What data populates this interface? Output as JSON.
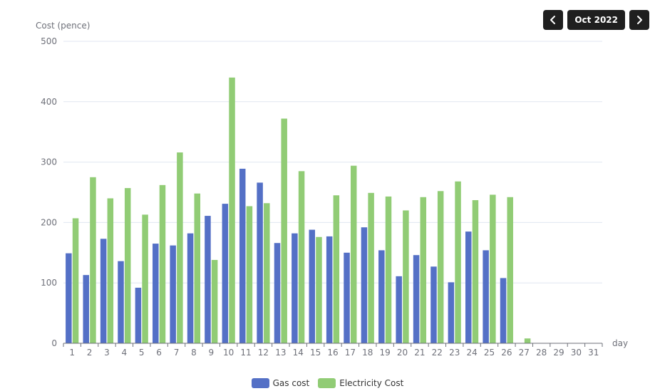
{
  "nav": {
    "month_label": "Oct 2022",
    "prev_icon": "chevron-left-icon",
    "next_icon": "chevron-right-icon"
  },
  "colors": {
    "gas": "#5470c6",
    "electricity": "#91cc75",
    "axis": "#6e7079",
    "grid": "#e0e6f1",
    "button": "#1f1f1f"
  },
  "chart_data": {
    "type": "bar",
    "xlabel": "day",
    "ylabel": "Cost (pence)",
    "ylim": [
      0,
      500
    ],
    "yticks": [
      0,
      100,
      200,
      300,
      400,
      500
    ],
    "grid": true,
    "legend_position": "bottom-center",
    "categories": [
      "1",
      "2",
      "3",
      "4",
      "5",
      "6",
      "7",
      "8",
      "9",
      "10",
      "11",
      "12",
      "13",
      "14",
      "15",
      "16",
      "17",
      "18",
      "19",
      "20",
      "21",
      "22",
      "23",
      "24",
      "25",
      "26",
      "27",
      "28",
      "29",
      "30",
      "31"
    ],
    "series": [
      {
        "name": "Gas cost",
        "values": [
          149,
          113,
          173,
          136,
          92,
          165,
          162,
          182,
          211,
          231,
          289,
          266,
          166,
          182,
          188,
          177,
          150,
          192,
          154,
          111,
          146,
          127,
          101,
          185,
          154,
          108,
          null,
          null,
          null,
          null,
          null
        ]
      },
      {
        "name": "Electricity Cost",
        "values": [
          207,
          275,
          240,
          257,
          213,
          262,
          316,
          248,
          138,
          440,
          227,
          232,
          372,
          285,
          176,
          245,
          294,
          249,
          243,
          220,
          242,
          252,
          268,
          237,
          246,
          242,
          8,
          null,
          null,
          null,
          null
        ]
      }
    ]
  }
}
